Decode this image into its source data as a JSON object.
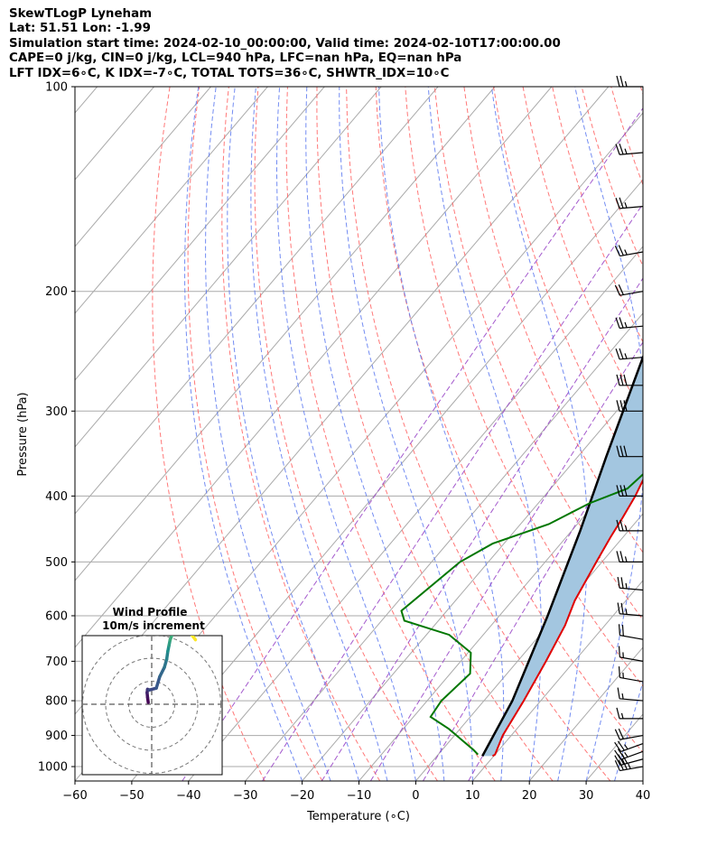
{
  "header": {
    "line1": "SkewTLogP Lyneham",
    "line2": "Lat: 51.51   Lon: -1.99",
    "line3": "Simulation start time: 2024-02-10_00:00:00, Valid time: 2024-02-10T17:00:00.00",
    "line4": "CAPE=0 j/kg, CIN=0 j/kg, LCL=940 hPa, LFC=nan hPa, EQ=nan hPa",
    "line5": "LFT IDX=6∘C, K IDX=-7∘C, TOTAL TOTS=36∘C, SHWTR_IDX=10∘C"
  },
  "chart_data": {
    "type": "line",
    "skew_chart": {
      "xlabel": "Temperature (∘C)",
      "ylabel": "Pressure (hPa)",
      "xlim": [
        -60,
        40
      ],
      "ylim": [
        1050,
        100
      ],
      "y_scale": "log",
      "x_ticks": [
        -60,
        -50,
        -40,
        -30,
        -20,
        -10,
        0,
        10,
        20,
        30,
        40
      ],
      "x_tick_labels": [
        "−60",
        "−50",
        "−40",
        "−30",
        "−20",
        "−10",
        "0",
        "10",
        "20",
        "30",
        "40"
      ],
      "y_ticks": [
        1000,
        900,
        800,
        700,
        600,
        500,
        400,
        300,
        200,
        100
      ],
      "y_tick_labels": [
        "1000",
        "900",
        "800",
        "700",
        "600",
        "500",
        "400",
        "300",
        "200",
        "100"
      ],
      "grid": true,
      "colors": {
        "temperature": "#e00000",
        "dewpoint": "#007700",
        "parcel": "#000000",
        "fill": "#a3c6e0",
        "isotherm": "#aaaaaa",
        "dry_adiabat": "#ff6060",
        "moist_adiabat": "#5a78f0",
        "mixing_ratio": "#9a48c8"
      },
      "series": [
        {
          "key": "temperature",
          "x_temperature": [
            9.8,
            10.0,
            8.5,
            7.0,
            5.0,
            3.0,
            1.0,
            -1.0,
            -2.2,
            -3.0,
            -4.0,
            -6.0,
            -8.0,
            -9.5,
            -11.0,
            -13.5,
            -14.3,
            -14.7,
            -14.3,
            -12.0,
            -10.0,
            -8.0,
            -6.0,
            -5.5,
            -3.0,
            -1.5,
            0.5,
            2.5,
            3.5,
            5.0,
            7.0,
            9.0,
            11.0,
            13.0
          ],
          "y_pressure": [
            965,
            960,
            900,
            800,
            700,
            620,
            570,
            500,
            460,
            430,
            400,
            360,
            330,
            300,
            290,
            280,
            270,
            260,
            240,
            220,
            210,
            200,
            190,
            180,
            165,
            150,
            140,
            132,
            128,
            120,
            112,
            106,
            101,
            100
          ]
        },
        {
          "key": "dewpoint",
          "x_temperature": [
            7.0,
            5.5,
            -2.0,
            -7.0,
            -7.5,
            -6.5,
            -9.5,
            -16.0,
            -26.0,
            -28.0,
            -25.0,
            -22.0,
            -15.0,
            -11.0,
            -6.5,
            -5.5,
            -6.0,
            -4.0,
            -3.0,
            -1.0
          ],
          "y_pressure": [
            960,
            945,
            880,
            845,
            800,
            730,
            680,
            640,
            610,
            590,
            500,
            470,
            440,
            410,
            390,
            360,
            300,
            200,
            150,
            100
          ]
        },
        {
          "key": "parcel",
          "x_temperature": [
            8.0,
            5.0,
            -1.5,
            -8.5,
            -15.0,
            -29.0,
            -34.0,
            -36.0,
            -38.0
          ],
          "y_pressure": [
            965,
            800,
            600,
            450,
            350,
            200,
            150,
            120,
            100
          ]
        }
      ],
      "wind_barbs": {
        "pressure": [
          1000,
          975,
          950,
          925,
          900,
          850,
          800,
          750,
          700,
          650,
          600,
          550,
          500,
          450,
          400,
          350,
          300,
          275,
          250,
          225,
          200,
          175,
          150,
          125,
          100
        ],
        "speed_kt": [
          35,
          30,
          25,
          25,
          20,
          15,
          15,
          15,
          15,
          20,
          25,
          25,
          25,
          25,
          30,
          30,
          30,
          30,
          25,
          25,
          20,
          25,
          25,
          25,
          25
        ],
        "direction_deg": [
          260,
          255,
          250,
          250,
          260,
          270,
          275,
          280,
          280,
          280,
          275,
          275,
          270,
          270,
          270,
          270,
          270,
          270,
          265,
          265,
          260,
          260,
          265,
          265,
          270
        ]
      }
    },
    "hodograph": {
      "title": "Wind Profile",
      "subtitle": "10m/s increment",
      "ring_increment_ms": 10,
      "rings": 3,
      "u_ms": [
        -1.5,
        -1.8,
        -2.0,
        -1.8,
        -1.0,
        2.0,
        3.5,
        5.5,
        6.5,
        7.0,
        7.5,
        8.0,
        9.0,
        10.5,
        12.0,
        14.0,
        15.0,
        16.0,
        17.5,
        19.0
      ],
      "v_ms": [
        0.8,
        3.0,
        5.0,
        6.5,
        6.2,
        7.0,
        12.0,
        16.0,
        19.5,
        23.0,
        25.5,
        28.0,
        30.5,
        32.0,
        33.0,
        34.0,
        33.5,
        32.0,
        30.0,
        28.0
      ]
    }
  }
}
